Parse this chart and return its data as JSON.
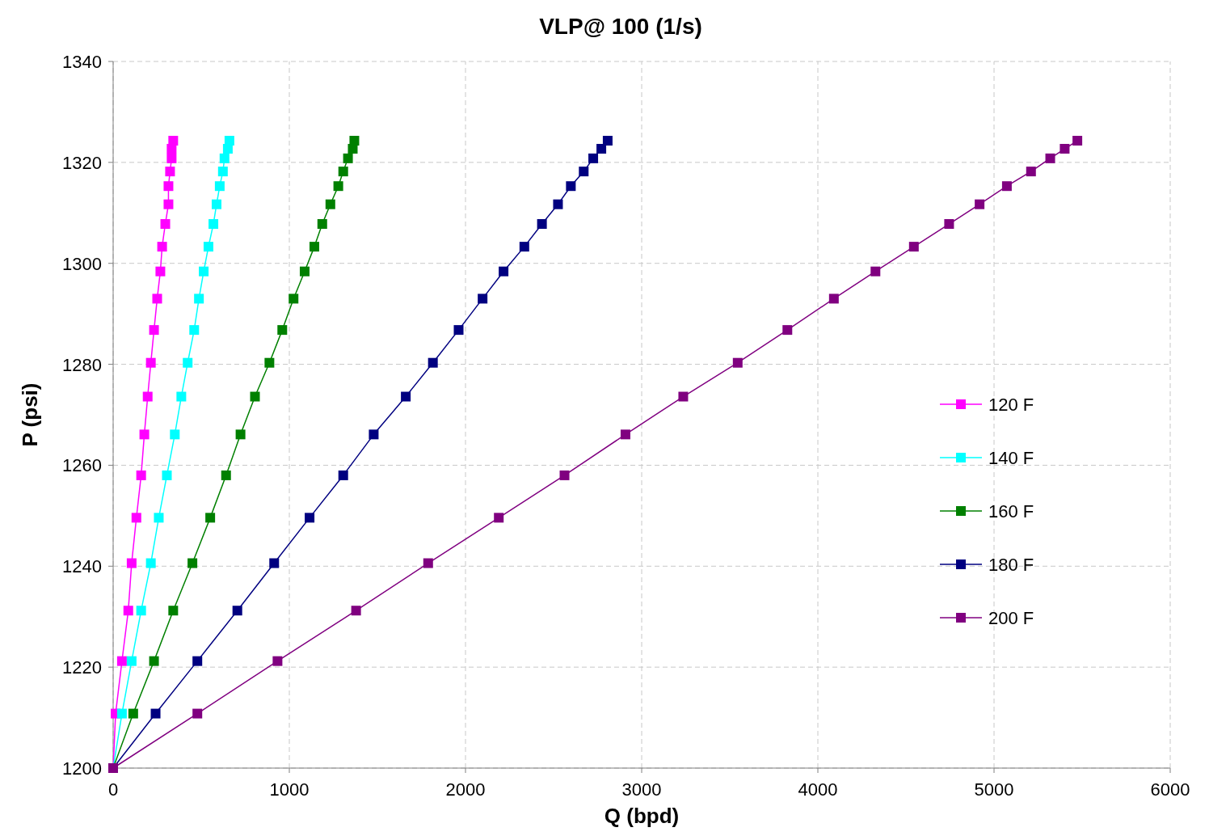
{
  "chart_data": {
    "type": "line",
    "title": "VLP@ 100 (1/s)",
    "xlabel": "Q (bpd)",
    "ylabel": "P (psi)",
    "xlim": [
      0,
      6000
    ],
    "xticks": [
      0,
      1000,
      2000,
      3000,
      4000,
      5000,
      6000
    ],
    "ylim": [
      1200,
      1340
    ],
    "yticks": [
      1200,
      1220,
      1240,
      1260,
      1280,
      1300,
      1320,
      1340
    ],
    "grid": true,
    "legend": "right",
    "marker": "square",
    "line_style": "solid",
    "series": [
      {
        "name": "120 F",
        "color": "#ff00ff",
        "x": [
          0,
          14,
          50,
          86,
          105,
          132,
          159,
          177,
          196,
          214,
          232,
          250,
          268,
          278,
          296,
          314,
          314,
          323,
          332,
          332,
          341
        ],
        "values": [
          1200,
          1210.8,
          1221.2,
          1231.2,
          1240.6,
          1249.6,
          1258,
          1266.1,
          1273.6,
          1280.3,
          1286.8,
          1293,
          1298.4,
          1303.3,
          1307.8,
          1311.7,
          1315.3,
          1318.2,
          1320.8,
          1322.7,
          1324.3
        ]
      },
      {
        "name": "140 F",
        "color": "#00ffff",
        "x": [
          0,
          50,
          105,
          159,
          214,
          259,
          305,
          350,
          387,
          423,
          460,
          487,
          514,
          541,
          569,
          587,
          605,
          623,
          632,
          651,
          660
        ],
        "values": [
          1200,
          1210.8,
          1221.2,
          1231.2,
          1240.6,
          1249.6,
          1258,
          1266.1,
          1273.6,
          1280.3,
          1286.8,
          1293,
          1298.4,
          1303.3,
          1307.8,
          1311.7,
          1315.3,
          1318.2,
          1320.8,
          1322.7,
          1324.3
        ]
      },
      {
        "name": "160 F",
        "color": "#008000",
        "x": [
          0,
          114,
          232,
          341,
          450,
          551,
          641,
          723,
          805,
          887,
          960,
          1024,
          1087,
          1142,
          1187,
          1233,
          1278,
          1306,
          1333,
          1360,
          1369
        ],
        "values": [
          1200,
          1210.8,
          1221.2,
          1231.2,
          1240.6,
          1249.6,
          1258,
          1266.1,
          1273.6,
          1280.3,
          1286.8,
          1293,
          1298.4,
          1303.3,
          1307.8,
          1311.7,
          1315.3,
          1318.2,
          1320.8,
          1322.7,
          1324.3
        ]
      },
      {
        "name": "180 F",
        "color": "#000080",
        "x": [
          0,
          241,
          478,
          705,
          914,
          1115,
          1306,
          1479,
          1661,
          1815,
          1961,
          2097,
          2216,
          2334,
          2434,
          2525,
          2598,
          2671,
          2725,
          2771,
          2807
        ],
        "values": [
          1200,
          1210.8,
          1221.2,
          1231.2,
          1240.6,
          1249.6,
          1258,
          1266.1,
          1273.6,
          1280.3,
          1286.8,
          1293,
          1298.4,
          1303.3,
          1307.8,
          1311.7,
          1315.3,
          1318.2,
          1320.8,
          1322.7,
          1324.3
        ]
      },
      {
        "name": "200 F",
        "color": "#800080",
        "x": [
          0,
          478,
          933,
          1379,
          1788,
          2189,
          2562,
          2908,
          3236,
          3545,
          3827,
          4091,
          4327,
          4545,
          4745,
          4918,
          5073,
          5210,
          5319,
          5401,
          5473
        ],
        "values": [
          1200,
          1210.8,
          1221.2,
          1231.2,
          1240.6,
          1249.6,
          1258,
          1266.1,
          1273.6,
          1280.3,
          1286.8,
          1293,
          1298.4,
          1303.3,
          1307.8,
          1311.7,
          1315.3,
          1318.2,
          1320.8,
          1322.7,
          1324.3
        ]
      }
    ]
  }
}
